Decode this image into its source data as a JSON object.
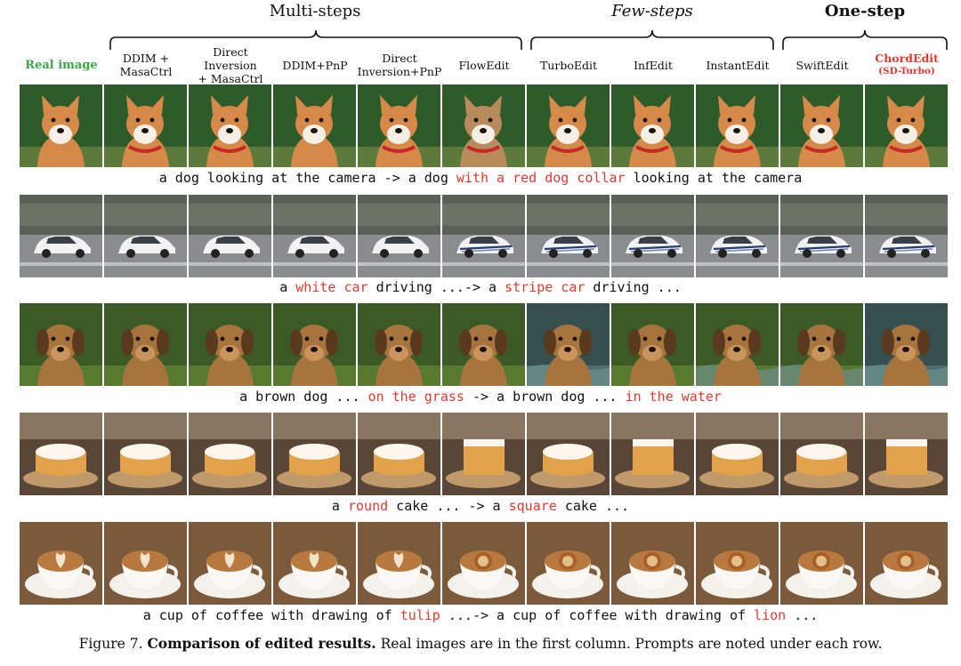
{
  "groups": {
    "multi": "Multi-steps",
    "few": "Few-steps",
    "one": "One-step"
  },
  "columns": [
    {
      "line1": "Real image",
      "line2": ""
    },
    {
      "line1": "DDIM +",
      "line2": "MasaCtrl"
    },
    {
      "line1": "Direct Inversion",
      "line2": "+ MasaCtrl"
    },
    {
      "line1": "DDIM+PnP",
      "line2": ""
    },
    {
      "line1": "Direct",
      "line2": "Inversion+PnP"
    },
    {
      "line1": "FlowEdit",
      "line2": ""
    },
    {
      "line1": "TurboEdit",
      "line2": ""
    },
    {
      "line1": "InfEdit",
      "line2": ""
    },
    {
      "line1": "InstantEdit",
      "line2": ""
    },
    {
      "line1": "SwiftEdit",
      "line2": ""
    },
    {
      "line1": "ChordEdit",
      "line2": "(SD-Turbo)"
    }
  ],
  "rows": [
    {
      "subject": "dog-collar",
      "caption": [
        {
          "t": "a dog looking at the camera -> a dog ",
          "hl": false
        },
        {
          "t": "with a red dog collar",
          "hl": true
        },
        {
          "t": " looking at the camera",
          "hl": false
        }
      ]
    },
    {
      "subject": "car",
      "caption": [
        {
          "t": "a ",
          "hl": false
        },
        {
          "t": "white car",
          "hl": true
        },
        {
          "t": " driving ...-> a ",
          "hl": false
        },
        {
          "t": "stripe car",
          "hl": true
        },
        {
          "t": " driving ...",
          "hl": false
        }
      ]
    },
    {
      "subject": "dog-grass",
      "caption": [
        {
          "t": "a brown dog ... ",
          "hl": false
        },
        {
          "t": "on the grass",
          "hl": true
        },
        {
          "t": " -> a brown dog ... ",
          "hl": false
        },
        {
          "t": "in the water",
          "hl": true
        }
      ]
    },
    {
      "subject": "cake",
      "caption": [
        {
          "t": "a ",
          "hl": false
        },
        {
          "t": "round",
          "hl": true
        },
        {
          "t": " cake ... -> a ",
          "hl": false
        },
        {
          "t": "square",
          "hl": true
        },
        {
          "t": " cake ...",
          "hl": false
        }
      ]
    },
    {
      "subject": "coffee",
      "caption": [
        {
          "t": "a cup of coffee with drawing of ",
          "hl": false
        },
        {
          "t": "tulip",
          "hl": true
        },
        {
          "t": " ...-> a cup of coffee with drawing of ",
          "hl": false
        },
        {
          "t": "lion",
          "hl": true
        },
        {
          "t": " ...",
          "hl": false
        }
      ]
    }
  ],
  "figure_caption": {
    "label": "Figure 7.",
    "title": "Comparison of edited results.",
    "text": " Real images are in the first column. Prompts are noted under each row."
  },
  "colors": {
    "highlight": "#e03a2e",
    "real_label": "#3aa846"
  }
}
